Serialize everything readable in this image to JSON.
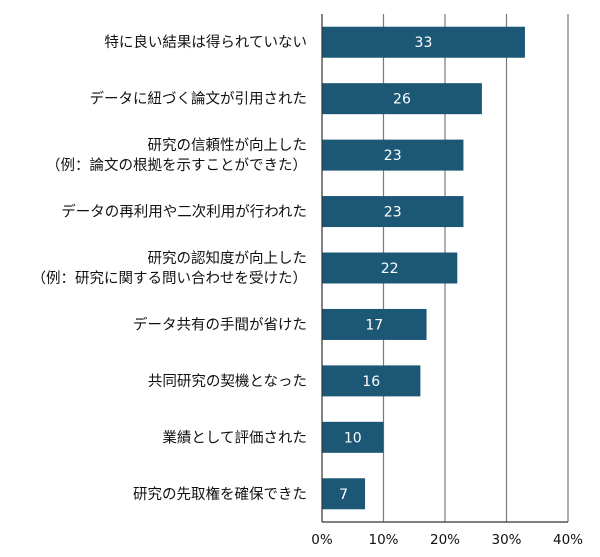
{
  "chart_data": {
    "type": "bar",
    "orientation": "horizontal",
    "categories": [
      [
        "特に良い結果は得られていない"
      ],
      [
        "データに紐づく論文が引用された"
      ],
      [
        "研究の信頼性が向上した",
        "（例：論文の根拠を示すことができた）"
      ],
      [
        "データの再利用や二次利用が行われた"
      ],
      [
        "研究の認知度が向上した",
        "（例：研究に関する問い合わせを受けた）"
      ],
      [
        "データ共有の手間が省けた"
      ],
      [
        "共同研究の契機となった"
      ],
      [
        "業績として評価された"
      ],
      [
        "研究の先取権を確保できた"
      ]
    ],
    "values": [
      33,
      26,
      23,
      23,
      22,
      17,
      16,
      10,
      7
    ],
    "xlim": [
      0,
      40
    ],
    "xticks": [
      0,
      10,
      20,
      30,
      40
    ],
    "tick_format": "%",
    "grid": true,
    "bar_color": "#1c5876"
  }
}
